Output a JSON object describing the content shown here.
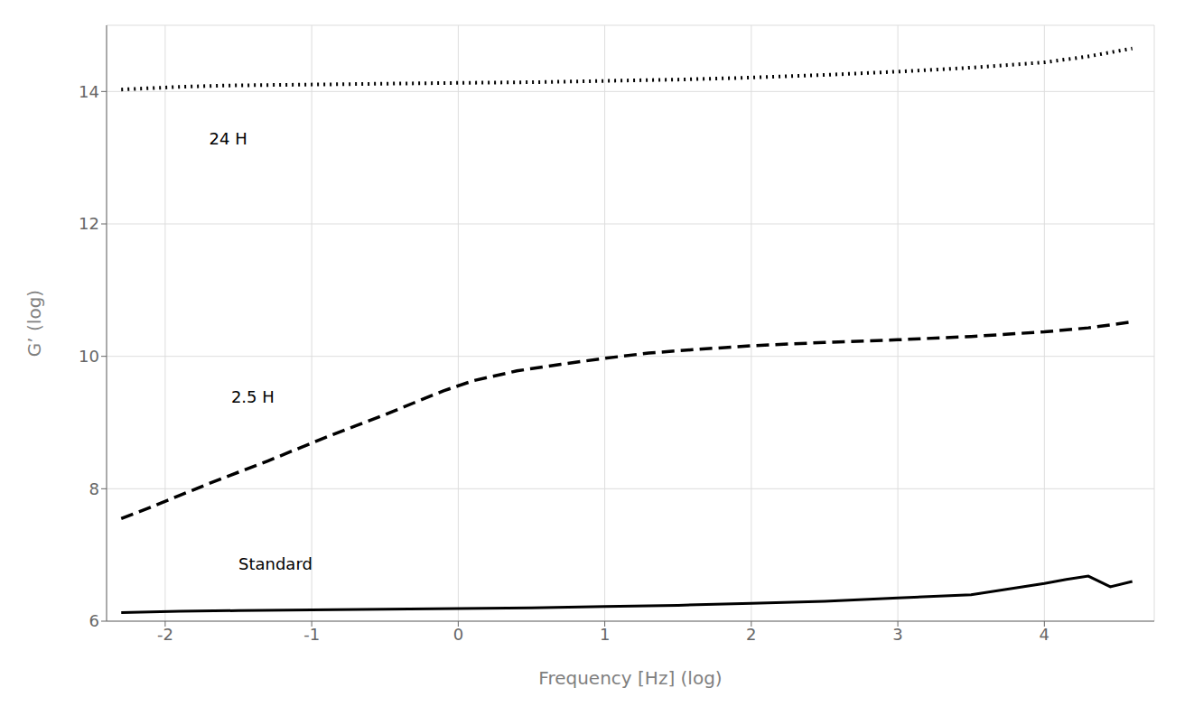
{
  "chart_data": {
    "type": "line",
    "xlabel": "Frequency [Hz] (log)",
    "ylabel": "G’ (log)",
    "xlim": [
      -2.4,
      4.75
    ],
    "ylim": [
      6.0,
      15.0
    ],
    "xticks": [
      -2,
      -1,
      0,
      1,
      2,
      3,
      4
    ],
    "yticks": [
      6,
      8,
      10,
      12,
      14
    ],
    "grid": true,
    "annotations": [
      {
        "text": "24 H",
        "x": -1.7,
        "y": 13.2
      },
      {
        "text": "2.5 H",
        "x": -1.55,
        "y": 9.3
      },
      {
        "text": "Standard",
        "x": -1.5,
        "y": 6.78
      }
    ],
    "series": [
      {
        "name": "24 H",
        "color": "#000000",
        "line_style": "dotted",
        "x": [
          -2.3,
          -2.1,
          -1.9,
          -1.6,
          -1.2,
          -0.8,
          -0.4,
          0.0,
          0.5,
          1.0,
          1.5,
          2.0,
          2.5,
          3.0,
          3.5,
          4.0,
          4.3,
          4.6
        ],
        "values": [
          14.03,
          14.05,
          14.07,
          14.09,
          14.1,
          14.11,
          14.12,
          14.13,
          14.14,
          14.16,
          14.18,
          14.21,
          14.25,
          14.3,
          14.36,
          14.44,
          14.53,
          14.65
        ]
      },
      {
        "name": "2.5 H",
        "color": "#000000",
        "line_style": "dashed",
        "x": [
          -2.3,
          -2.1,
          -1.9,
          -1.7,
          -1.5,
          -1.3,
          -1.1,
          -0.9,
          -0.7,
          -0.5,
          -0.3,
          -0.1,
          0.1,
          0.4,
          0.7,
          1.0,
          1.3,
          1.6,
          2.0,
          2.5,
          3.0,
          3.5,
          4.0,
          4.3,
          4.6
        ],
        "values": [
          7.55,
          7.72,
          7.9,
          8.08,
          8.25,
          8.42,
          8.6,
          8.78,
          8.95,
          9.12,
          9.3,
          9.48,
          9.63,
          9.78,
          9.88,
          9.97,
          10.05,
          10.1,
          10.16,
          10.21,
          10.25,
          10.3,
          10.37,
          10.43,
          10.52
        ]
      },
      {
        "name": "Standard",
        "color": "#000000",
        "line_style": "solid",
        "x": [
          -2.3,
          -2.1,
          -1.9,
          -1.5,
          -1.0,
          -0.5,
          0.0,
          0.5,
          1.0,
          1.5,
          2.0,
          2.5,
          3.0,
          3.5,
          4.0,
          4.15,
          4.3,
          4.45,
          4.6
        ],
        "values": [
          6.13,
          6.14,
          6.15,
          6.16,
          6.17,
          6.18,
          6.19,
          6.2,
          6.22,
          6.24,
          6.27,
          6.3,
          6.35,
          6.4,
          6.57,
          6.63,
          6.68,
          6.52,
          6.6
        ]
      }
    ]
  }
}
